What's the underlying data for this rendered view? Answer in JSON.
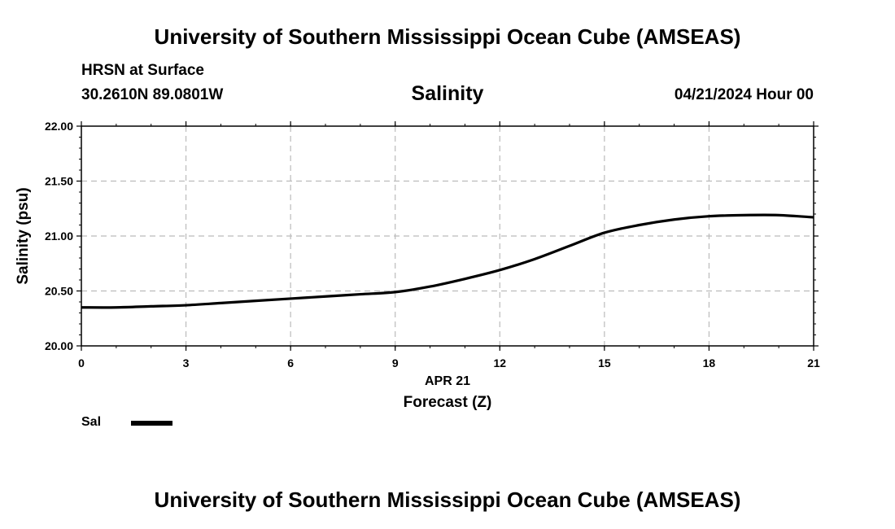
{
  "header": {
    "top_title": "University of Southern Mississippi Ocean Cube (AMSEAS)",
    "station": "HRSN at Surface",
    "coords": "30.2610N  89.0801W",
    "date": "04/21/2024 Hour 00"
  },
  "footer": {
    "bottom_title": "University of Southern Mississippi Ocean Cube (AMSEAS)"
  },
  "chart_data": {
    "type": "line",
    "title": "Salinity",
    "xlabel": "Forecast (Z)",
    "xsublabel": "APR 21",
    "ylabel": "Salinity (psu)",
    "xlim": [
      0,
      21
    ],
    "ylim": [
      20.0,
      22.0
    ],
    "xticks": [
      0,
      3,
      6,
      9,
      12,
      15,
      18,
      21
    ],
    "yticks": [
      20.0,
      20.5,
      21.0,
      21.5,
      22.0
    ],
    "ytick_labels": [
      "20.00",
      "20.50",
      "21.00",
      "21.50",
      "22.00"
    ],
    "grid": true,
    "line_color": "#000000",
    "grid_color": "#bbbbbb",
    "series": [
      {
        "name": "Sal",
        "x": [
          0,
          1,
          2,
          3,
          4,
          5,
          6,
          7,
          8,
          9,
          10,
          11,
          12,
          13,
          14,
          15,
          16,
          17,
          18,
          19,
          20,
          21
        ],
        "values": [
          20.35,
          20.35,
          20.36,
          20.37,
          20.39,
          20.41,
          20.43,
          20.45,
          20.47,
          20.49,
          20.54,
          20.61,
          20.69,
          20.79,
          20.91,
          21.03,
          21.1,
          21.15,
          21.18,
          21.19,
          21.19,
          21.17
        ]
      }
    ]
  }
}
